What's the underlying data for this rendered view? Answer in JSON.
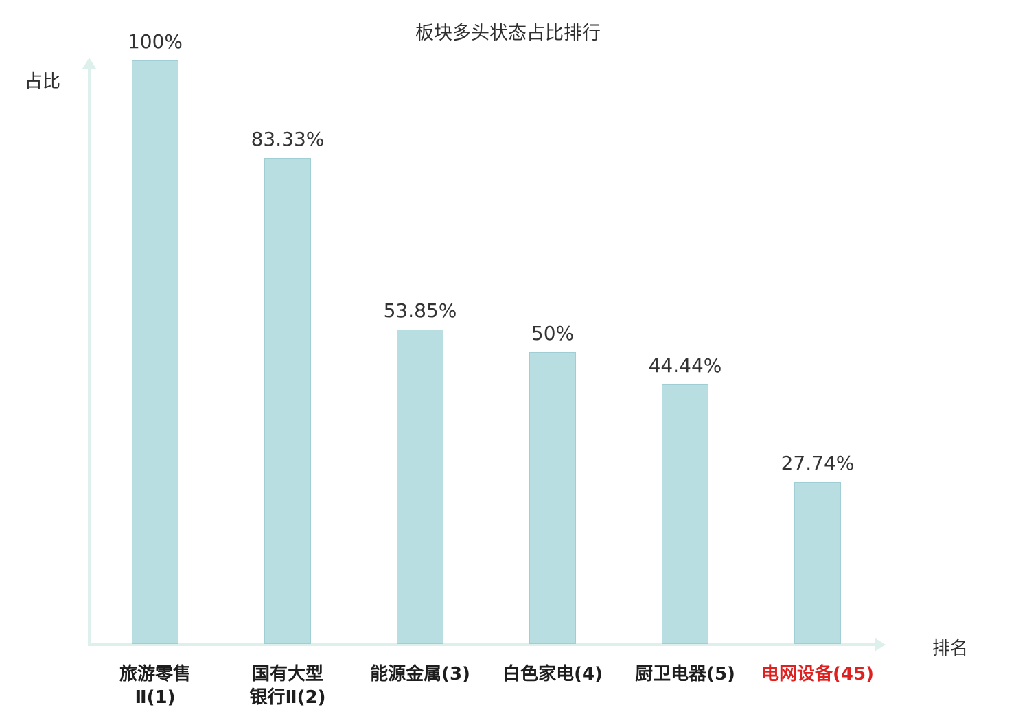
{
  "chart_data": {
    "type": "bar",
    "title": "板块多头状态占比排行",
    "xlabel": "排名",
    "ylabel": "占比",
    "ylim": [
      0,
      100
    ],
    "grid": false,
    "legend": false,
    "categories": [
      "旅游零售\nⅡ(1)",
      "国有大型\n银行Ⅱ(2)",
      "能源金属(3)",
      "白色家电(4)",
      "厨卫电器(5)",
      "电网设备(45)"
    ],
    "values": [
      100,
      83.33,
      53.85,
      50,
      44.44,
      27.74
    ],
    "value_labels": [
      "100%",
      "83.33%",
      "53.85%",
      "50%",
      "44.44%",
      "27.74%"
    ],
    "highlight_index": 5,
    "colors": {
      "bar_fill": "#b9dee2",
      "bar_border": "#9fcfd5",
      "axis": "#ddf0ec",
      "text": "#2f2f2f",
      "highlight_text": "#e01f1f"
    }
  }
}
